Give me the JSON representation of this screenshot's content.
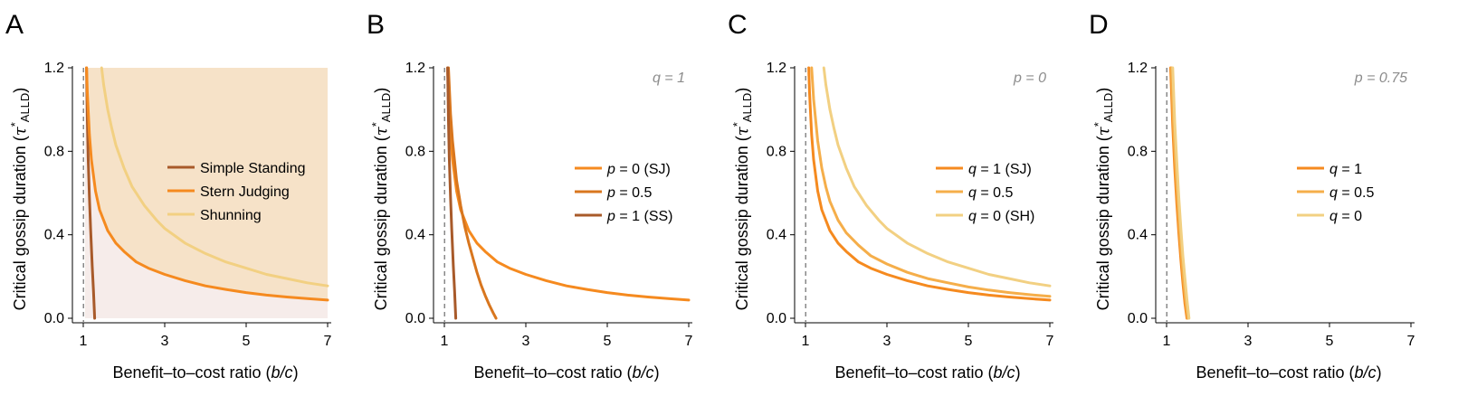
{
  "colors": {
    "simple_standing": "#A85A2A",
    "stern_judging": "#F58A1F",
    "shunning": "#F2D082",
    "p05": "#D8761E",
    "q05": "#F5AE4A",
    "region_upper": "#F6E2C8",
    "region_lower": "#F6ECEA",
    "dashed": "#888888"
  },
  "chart_data": [
    {
      "panel": "A",
      "type": "line",
      "xlabel_prefix": "Benefit–to–cost ratio (",
      "xlabel_var": "b/c",
      "xlabel_suffix": ")",
      "ylabel_text": "Critical gossip duration (",
      "ylabel_tau": "τ",
      "ylabel_star": "*",
      "ylabel_sub": "ALLD",
      "ylabel_close": ")",
      "xlim": [
        1,
        7
      ],
      "ylim": [
        0,
        1.2
      ],
      "xticks": [
        1,
        3,
        5,
        7
      ],
      "yticks": [
        0.0,
        0.4,
        0.8,
        1.2
      ],
      "ytick_labels": [
        "0.0",
        "0.4",
        "0.8",
        "1.2"
      ],
      "threshold_x": 1.05,
      "shaded": true,
      "annotation": null,
      "legend": [
        "Simple Standing",
        "Stern Judging",
        "Shunning"
      ],
      "series": [
        {
          "name": "Simple Standing",
          "color_key": "simple_standing",
          "x": [
            1.08,
            1.1,
            1.12,
            1.15,
            1.18,
            1.22,
            1.25,
            1.28
          ],
          "y": [
            1.2,
            0.95,
            0.77,
            0.58,
            0.43,
            0.25,
            0.13,
            0.0
          ]
        },
        {
          "name": "Stern Judging",
          "color_key": "stern_judging",
          "x": [
            1.08,
            1.1,
            1.15,
            1.2,
            1.3,
            1.4,
            1.6,
            1.8,
            2.0,
            2.3,
            2.6,
            3.0,
            3.5,
            4.0,
            4.5,
            5.0,
            5.5,
            6.0,
            6.5,
            7.0
          ],
          "y": [
            1.2,
            1.08,
            0.88,
            0.76,
            0.61,
            0.52,
            0.42,
            0.36,
            0.32,
            0.27,
            0.24,
            0.21,
            0.18,
            0.155,
            0.138,
            0.123,
            0.111,
            0.102,
            0.094,
            0.087
          ]
        },
        {
          "name": "Shunning",
          "color_key": "shunning",
          "x": [
            1.45,
            1.5,
            1.6,
            1.7,
            1.8,
            2.0,
            2.2,
            2.5,
            2.8,
            3.0,
            3.5,
            4.0,
            4.5,
            5.0,
            5.5,
            6.0,
            6.5,
            7.0
          ],
          "y": [
            1.2,
            1.12,
            1.0,
            0.91,
            0.83,
            0.72,
            0.63,
            0.54,
            0.47,
            0.43,
            0.36,
            0.31,
            0.27,
            0.24,
            0.21,
            0.19,
            0.17,
            0.155
          ]
        }
      ]
    },
    {
      "panel": "B",
      "type": "line",
      "xlabel_prefix": "Benefit–to–cost ratio (",
      "xlabel_var": "b/c",
      "xlabel_suffix": ")",
      "ylabel_text": "Critical gossip duration (",
      "ylabel_tau": "τ",
      "ylabel_star": "*",
      "ylabel_sub": "ALLD",
      "ylabel_close": ")",
      "xlim": [
        1,
        7
      ],
      "ylim": [
        0,
        1.2
      ],
      "xticks": [
        1,
        3,
        5,
        7
      ],
      "yticks": [
        0.0,
        0.4,
        0.8,
        1.2
      ],
      "ytick_labels": [
        "0.0",
        "0.4",
        "0.8",
        "1.2"
      ],
      "threshold_x": 1.05,
      "shaded": false,
      "annotation": {
        "var": "q",
        "text": " = 1"
      },
      "legend": [
        {
          "var": "p",
          "text": " = 0 (SJ)",
          "color_key": "stern_judging"
        },
        {
          "var": "p",
          "text": " = 0.5",
          "color_key": "p05"
        },
        {
          "var": "p",
          "text": " = 1 (SS)",
          "color_key": "simple_standing"
        }
      ],
      "series": [
        {
          "name": "p = 0 (SJ)",
          "color_key": "stern_judging",
          "x": [
            1.08,
            1.1,
            1.15,
            1.2,
            1.3,
            1.4,
            1.6,
            1.8,
            2.0,
            2.3,
            2.6,
            3.0,
            3.5,
            4.0,
            4.5,
            5.0,
            5.5,
            6.0,
            6.5,
            7.0
          ],
          "y": [
            1.2,
            1.08,
            0.88,
            0.76,
            0.61,
            0.52,
            0.42,
            0.36,
            0.32,
            0.27,
            0.24,
            0.21,
            0.18,
            0.155,
            0.138,
            0.123,
            0.111,
            0.102,
            0.094,
            0.087
          ]
        },
        {
          "name": "p = 0.5",
          "color_key": "p05",
          "x": [
            1.1,
            1.15,
            1.2,
            1.3,
            1.4,
            1.5,
            1.6,
            1.7,
            1.8,
            1.9,
            2.0,
            2.1,
            2.2,
            2.27
          ],
          "y": [
            1.2,
            0.98,
            0.85,
            0.66,
            0.54,
            0.44,
            0.36,
            0.29,
            0.22,
            0.16,
            0.11,
            0.065,
            0.025,
            0.0
          ]
        },
        {
          "name": "p = 1 (SS)",
          "color_key": "simple_standing",
          "x": [
            1.08,
            1.1,
            1.12,
            1.15,
            1.18,
            1.22,
            1.25,
            1.28
          ],
          "y": [
            1.2,
            0.95,
            0.77,
            0.58,
            0.43,
            0.25,
            0.13,
            0.0
          ]
        }
      ]
    },
    {
      "panel": "C",
      "type": "line",
      "xlabel_prefix": "Benefit–to–cost ratio (",
      "xlabel_var": "b/c",
      "xlabel_suffix": ")",
      "ylabel_text": "Critical gossip duration (",
      "ylabel_tau": "τ",
      "ylabel_star": "*",
      "ylabel_sub": "ALLD",
      "ylabel_close": ")",
      "xlim": [
        1,
        7
      ],
      "ylim": [
        0,
        1.2
      ],
      "xticks": [
        1,
        3,
        5,
        7
      ],
      "yticks": [
        0.0,
        0.4,
        0.8,
        1.2
      ],
      "ytick_labels": [
        "0.0",
        "0.4",
        "0.8",
        "1.2"
      ],
      "threshold_x": 1.05,
      "shaded": false,
      "annotation": {
        "var": "p",
        "text": " = 0"
      },
      "legend": [
        {
          "var": "q",
          "text": " = 1 (SJ)",
          "color_key": "stern_judging"
        },
        {
          "var": "q",
          "text": " = 0.5",
          "color_key": "q05"
        },
        {
          "var": "q",
          "text": " = 0 (SH)",
          "color_key": "shunning"
        }
      ],
      "series": [
        {
          "name": "q = 1 (SJ)",
          "color_key": "stern_judging",
          "x": [
            1.08,
            1.1,
            1.15,
            1.2,
            1.3,
            1.4,
            1.6,
            1.8,
            2.0,
            2.3,
            2.6,
            3.0,
            3.5,
            4.0,
            4.5,
            5.0,
            5.5,
            6.0,
            6.5,
            7.0
          ],
          "y": [
            1.2,
            1.08,
            0.88,
            0.76,
            0.61,
            0.52,
            0.42,
            0.36,
            0.32,
            0.27,
            0.24,
            0.21,
            0.18,
            0.155,
            0.138,
            0.123,
            0.111,
            0.102,
            0.094,
            0.087
          ]
        },
        {
          "name": "q = 0.5",
          "color_key": "q05",
          "x": [
            1.15,
            1.2,
            1.3,
            1.4,
            1.5,
            1.6,
            1.8,
            2.0,
            2.3,
            2.6,
            3.0,
            3.5,
            4.0,
            4.5,
            5.0,
            5.5,
            6.0,
            6.5,
            7.0
          ],
          "y": [
            1.2,
            1.05,
            0.85,
            0.72,
            0.63,
            0.56,
            0.47,
            0.41,
            0.35,
            0.3,
            0.26,
            0.22,
            0.19,
            0.17,
            0.15,
            0.135,
            0.123,
            0.113,
            0.105
          ]
        },
        {
          "name": "q = 0 (SH)",
          "color_key": "shunning",
          "x": [
            1.45,
            1.5,
            1.6,
            1.7,
            1.8,
            2.0,
            2.2,
            2.5,
            2.8,
            3.0,
            3.5,
            4.0,
            4.5,
            5.0,
            5.5,
            6.0,
            6.5,
            7.0
          ],
          "y": [
            1.2,
            1.12,
            1.0,
            0.91,
            0.83,
            0.72,
            0.63,
            0.54,
            0.47,
            0.43,
            0.36,
            0.31,
            0.27,
            0.24,
            0.21,
            0.19,
            0.17,
            0.155
          ]
        }
      ]
    },
    {
      "panel": "D",
      "type": "line",
      "xlabel_prefix": "Benefit–to–cost ratio (",
      "xlabel_var": "b/c",
      "xlabel_suffix": ")",
      "ylabel_text": "Critical gossip duration (",
      "ylabel_tau": "τ",
      "ylabel_star": "*",
      "ylabel_sub": "ALLD",
      "ylabel_close": ")",
      "xlim": [
        1,
        7
      ],
      "ylim": [
        0,
        1.2
      ],
      "xticks": [
        1,
        3,
        5,
        7
      ],
      "yticks": [
        0.0,
        0.4,
        0.8,
        1.2
      ],
      "ytick_labels": [
        "0.0",
        "0.4",
        "0.8",
        "1.2"
      ],
      "threshold_x": 1.05,
      "shaded": false,
      "annotation": {
        "var": "p",
        "text": " = 0.75"
      },
      "legend": [
        {
          "var": "q",
          "text": " = 1",
          "color_key": "stern_judging"
        },
        {
          "var": "q",
          "text": " = 0.5",
          "color_key": "q05"
        },
        {
          "var": "q",
          "text": " = 0",
          "color_key": "shunning"
        }
      ],
      "series": [
        {
          "name": "q = 1",
          "color_key": "stern_judging",
          "x": [
            1.1,
            1.15,
            1.2,
            1.25,
            1.3,
            1.35,
            1.4,
            1.45,
            1.5
          ],
          "y": [
            1.2,
            0.92,
            0.72,
            0.55,
            0.41,
            0.28,
            0.17,
            0.07,
            0.0
          ]
        },
        {
          "name": "q = 0.5",
          "color_key": "q05",
          "x": [
            1.12,
            1.17,
            1.22,
            1.27,
            1.32,
            1.37,
            1.42,
            1.47,
            1.52
          ],
          "y": [
            1.2,
            0.93,
            0.74,
            0.57,
            0.42,
            0.29,
            0.18,
            0.08,
            0.0
          ]
        },
        {
          "name": "q = 0",
          "color_key": "shunning",
          "x": [
            1.15,
            1.2,
            1.25,
            1.3,
            1.35,
            1.4,
            1.45,
            1.5,
            1.55
          ],
          "y": [
            1.2,
            0.94,
            0.75,
            0.58,
            0.43,
            0.3,
            0.19,
            0.09,
            0.0
          ]
        }
      ]
    }
  ]
}
